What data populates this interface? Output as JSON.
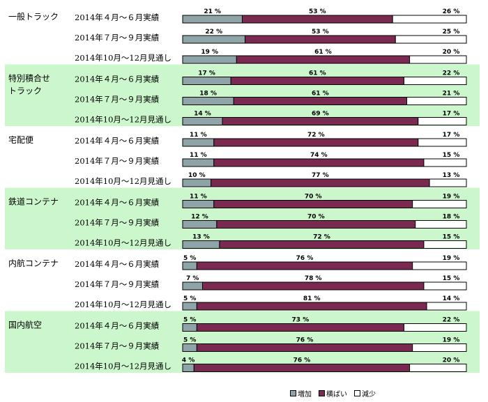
{
  "chart_data": {
    "type": "bar",
    "stacked": "100%",
    "orientation": "horizontal",
    "percent_suffix": "%",
    "groups": [
      {
        "name": "一般トラック",
        "rows": [
          {
            "period": "2014年４月～６月実績",
            "values": [
              21,
              53,
              26
            ]
          },
          {
            "period": "2014年７月～９月実績",
            "values": [
              22,
              53,
              25
            ]
          },
          {
            "period": "2014年10月～12月見通し",
            "values": [
              19,
              61,
              20
            ]
          }
        ]
      },
      {
        "name": "特別積合せトラック",
        "name_lines": [
          "特別積合せ",
          "トラック"
        ],
        "rows": [
          {
            "period": "2014年４月～６月実績",
            "values": [
              17,
              61,
              22
            ]
          },
          {
            "period": "2014年７月～９月実績",
            "values": [
              18,
              61,
              21
            ]
          },
          {
            "period": "2014年10月～12月見通し",
            "values": [
              14,
              69,
              17
            ]
          }
        ]
      },
      {
        "name": "宅配便",
        "rows": [
          {
            "period": "2014年４月～６月実績",
            "values": [
              11,
              72,
              17
            ]
          },
          {
            "period": "2014年７月～９月実績",
            "values": [
              11,
              74,
              15
            ]
          },
          {
            "period": "2014年10月～12月見通し",
            "values": [
              10,
              77,
              13
            ]
          }
        ]
      },
      {
        "name": "鉄道コンテナ",
        "rows": [
          {
            "period": "2014年４月～６月実績",
            "values": [
              11,
              70,
              19
            ]
          },
          {
            "period": "2014年７月～９月実績",
            "values": [
              12,
              70,
              18
            ]
          },
          {
            "period": "2014年10月～12月見通し",
            "values": [
              13,
              72,
              15
            ]
          }
        ]
      },
      {
        "name": "内航コンテナ",
        "rows": [
          {
            "period": "2014年４月～６月実績",
            "values": [
              5,
              76,
              19
            ]
          },
          {
            "period": "2014年７月～９月実績",
            "values": [
              7,
              78,
              15
            ]
          },
          {
            "period": "2014年10月～12月見通し",
            "values": [
              5,
              81,
              14
            ]
          }
        ]
      },
      {
        "name": "国内航空",
        "rows": [
          {
            "period": "2014年４月～６月実績",
            "values": [
              5,
              73,
              22
            ]
          },
          {
            "period": "2014年７月～９月実績",
            "values": [
              5,
              76,
              19
            ]
          },
          {
            "period": "2014年10月～12月見通し",
            "values": [
              4,
              76,
              20
            ]
          }
        ]
      }
    ],
    "series": [
      {
        "name": "増加",
        "color": "#8fa4a8"
      },
      {
        "name": "横ばい",
        "color": "#7a2a50"
      },
      {
        "name": "減少",
        "color": "#ffffff"
      }
    ],
    "group_band_color": "#ccf7cc",
    "legend_position": "bottom-right"
  }
}
